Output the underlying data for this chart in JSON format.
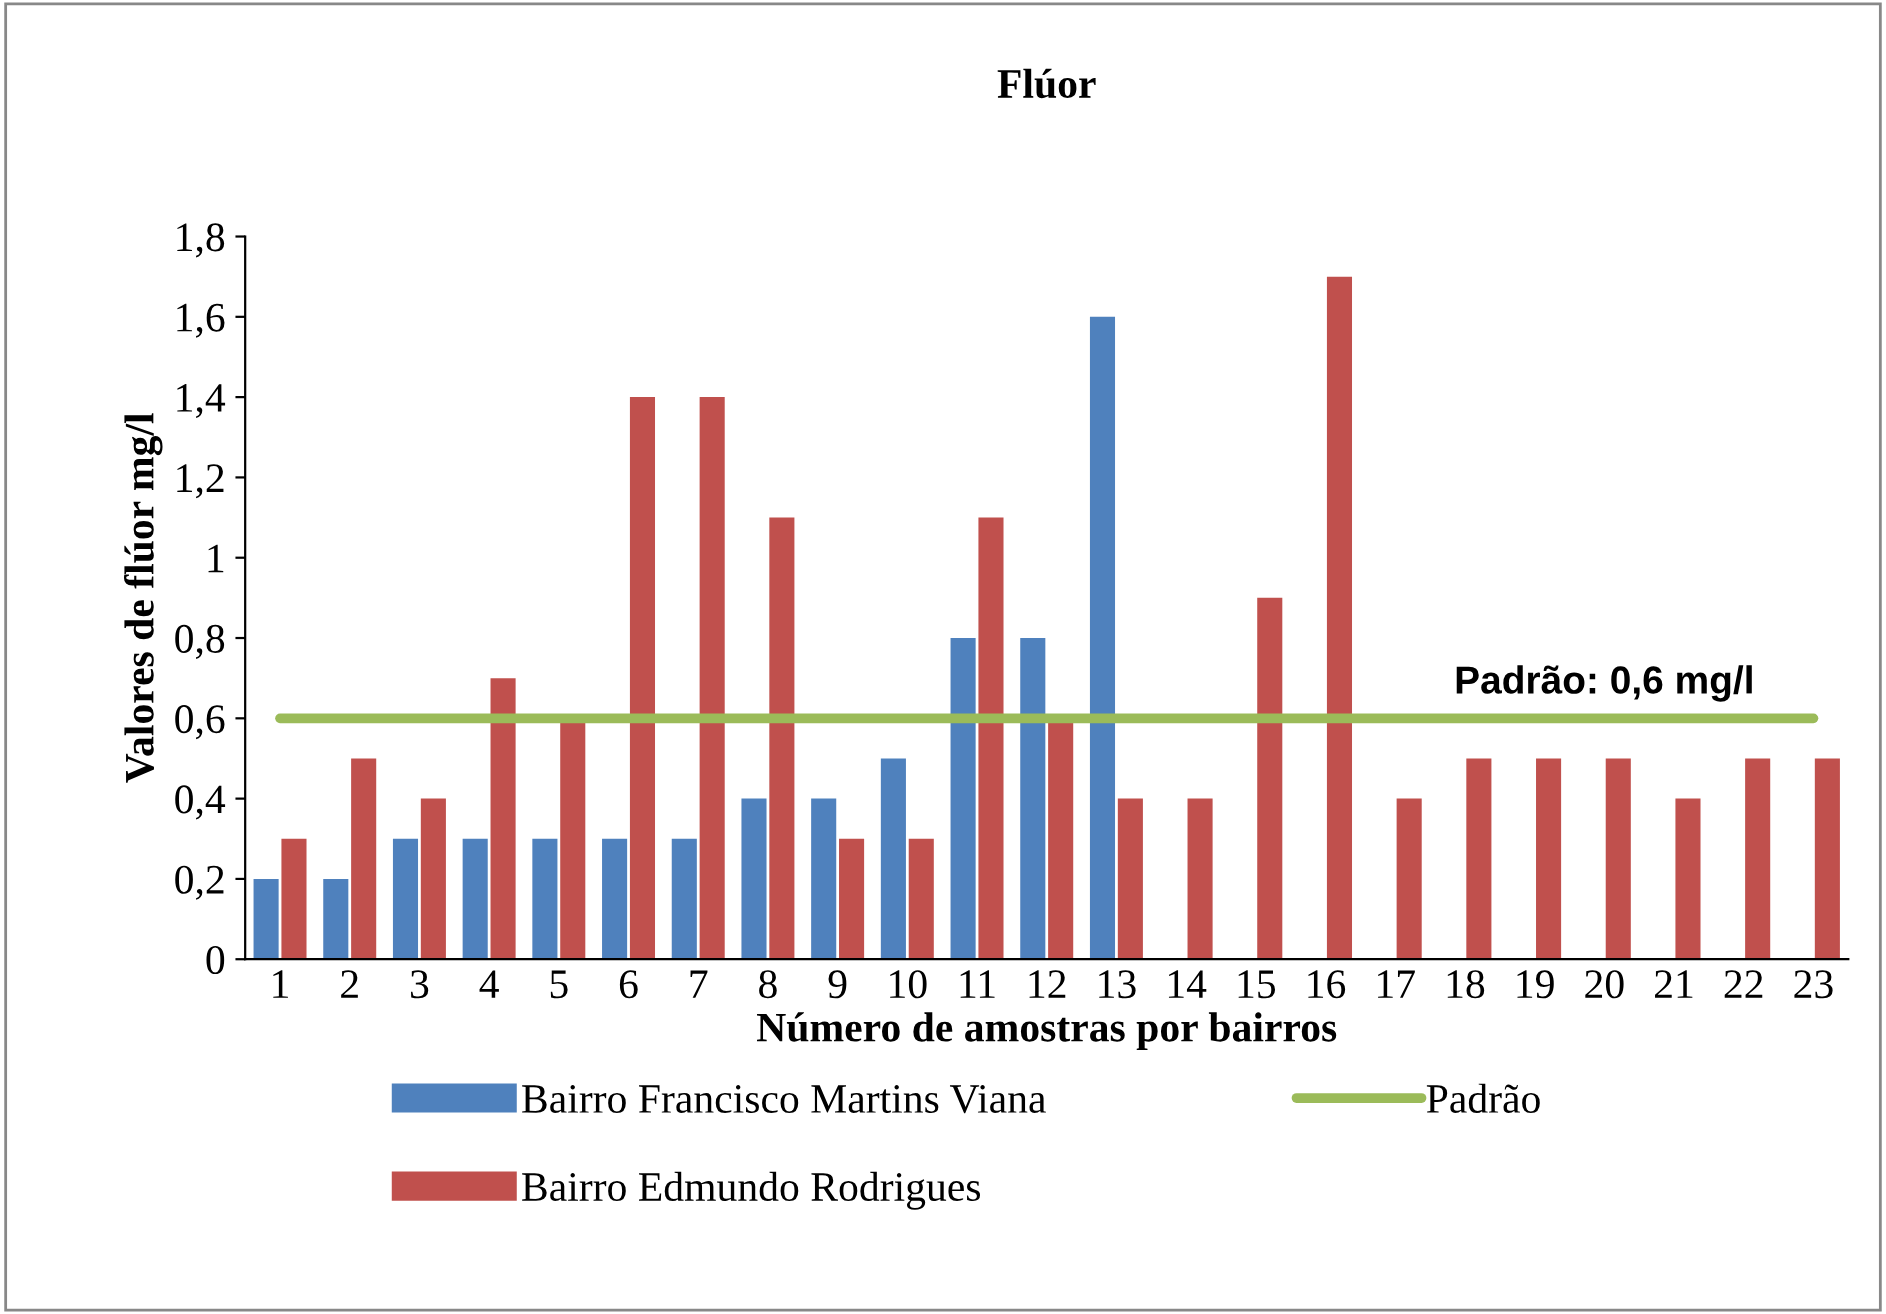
{
  "chart_data": {
    "type": "bar",
    "title": "Flúor",
    "xlabel": "Número de amostras por bairros",
    "ylabel": "Valores de flúor mg/l",
    "categories": [
      "1",
      "2",
      "3",
      "4",
      "5",
      "6",
      "7",
      "8",
      "9",
      "10",
      "11",
      "12",
      "13",
      "14",
      "15",
      "16",
      "17",
      "18",
      "19",
      "20",
      "21",
      "22",
      "23"
    ],
    "series": [
      {
        "name": "Bairro Francisco Martins Viana",
        "color": "#4f81bd",
        "values": [
          0.2,
          0.2,
          0.3,
          0.3,
          0.3,
          0.3,
          0.3,
          0.4,
          0.4,
          0.5,
          0.8,
          0.8,
          1.6,
          null,
          null,
          null,
          null,
          null,
          null,
          null,
          null,
          null,
          null
        ]
      },
      {
        "name": "Bairro Edmundo Rodrigues",
        "color": "#c0504d",
        "values": [
          0.3,
          0.5,
          0.4,
          0.7,
          0.6,
          1.4,
          1.4,
          1.1,
          0.3,
          0.3,
          1.1,
          0.6,
          0.4,
          0.4,
          0.9,
          1.7,
          0.4,
          0.5,
          0.5,
          0.5,
          0.4,
          0.5,
          0.5
        ]
      },
      {
        "name": "Padrão",
        "type": "line",
        "color": "#9bbb59",
        "values": [
          0.6,
          0.6,
          0.6,
          0.6,
          0.6,
          0.6,
          0.6,
          0.6,
          0.6,
          0.6,
          0.6,
          0.6,
          0.6,
          0.6,
          0.6,
          0.6,
          0.6,
          0.6,
          0.6,
          0.6,
          0.6,
          0.6,
          0.6
        ]
      }
    ],
    "annotations": [
      {
        "text": "Padrão: 0,6 mg/l",
        "x": "20",
        "y": 0.6
      }
    ],
    "ylim": [
      0,
      1.8
    ],
    "yticks": [
      0,
      {
        "value": 0.2,
        "label": "0,2"
      },
      {
        "value": 0.4,
        "label": "0,4"
      },
      {
        "value": 0.6,
        "label": "0,6"
      },
      {
        "value": 0.8,
        "label": "0,8"
      },
      1,
      {
        "value": 1.2,
        "label": "1,2"
      },
      {
        "value": 1.4,
        "label": "1,4"
      },
      {
        "value": 1.6,
        "label": "1,6"
      },
      {
        "value": 1.8,
        "label": "1,8"
      }
    ],
    "grid": false,
    "legend": "bottom"
  }
}
